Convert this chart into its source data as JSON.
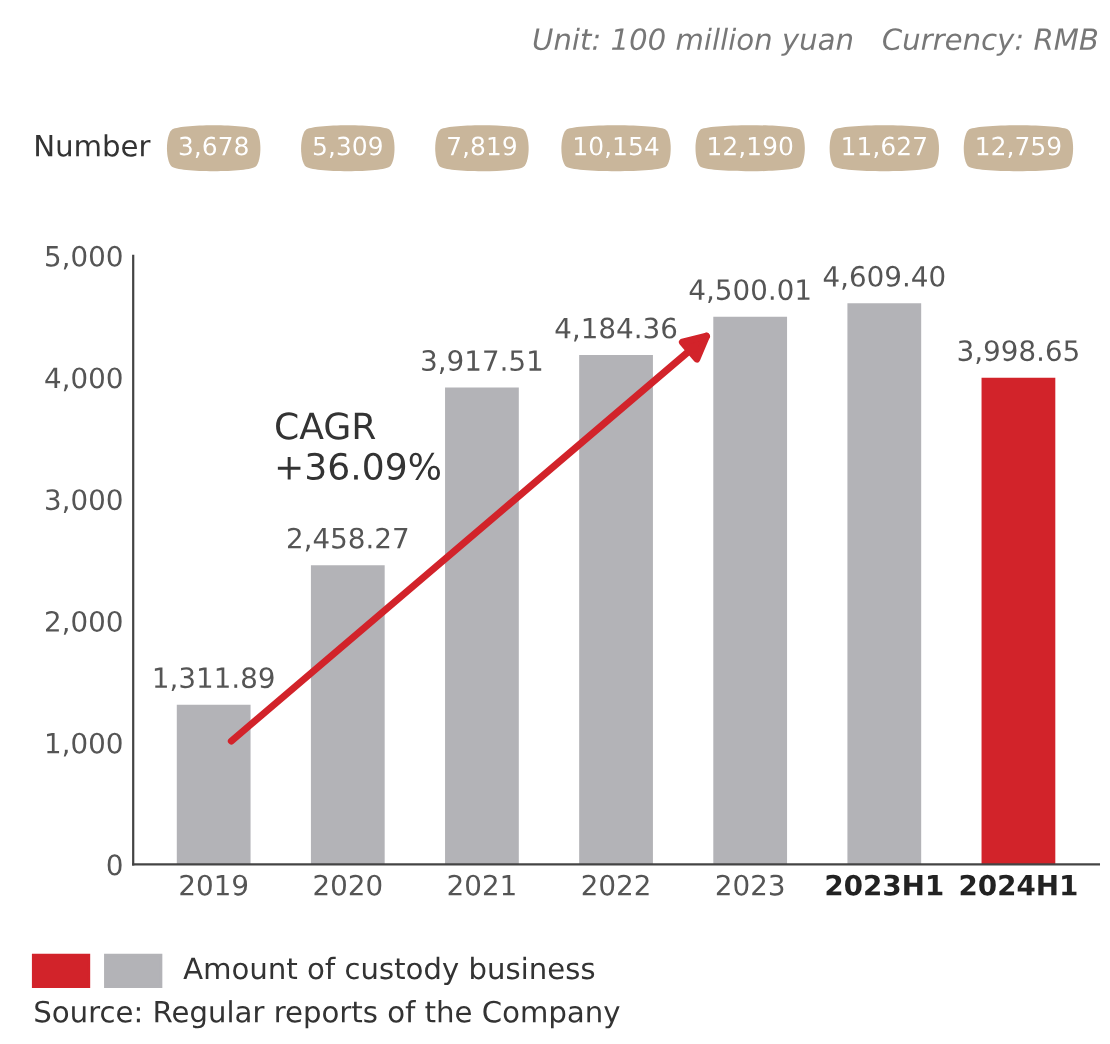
{
  "chart_data": {
    "type": "bar",
    "subtitle": "Unit: 100 million yuan   Currency: RMB",
    "categories": [
      "2019",
      "2020",
      "2021",
      "2022",
      "2023",
      "2023H1",
      "2024H1"
    ],
    "series": [
      {
        "name": "Amount of custody business",
        "colors": [
          "#b3b3b7",
          "#b3b3b7",
          "#b3b3b7",
          "#b3b3b7",
          "#b3b3b7",
          "#b3b3b7",
          "#d2232a"
        ],
        "values": [
          1311.89,
          2458.27,
          3917.51,
          4184.36,
          4500.01,
          4609.4,
          3998.65
        ],
        "value_labels": [
          "1,311.89",
          "2,458.27",
          "3,917.51",
          "4,184.36",
          "4,500.01",
          "4,609.40",
          "3,998.65"
        ]
      }
    ],
    "ylim": [
      0,
      5000
    ],
    "yticks": [
      {
        "value": 0,
        "label": "0"
      },
      {
        "value": 1000,
        "label": "1,000"
      },
      {
        "value": 2000,
        "label": "2,000"
      },
      {
        "value": 3000,
        "label": "3,000"
      },
      {
        "value": 4000,
        "label": "4,000"
      },
      {
        "value": 5000,
        "label": "5,000"
      }
    ],
    "grid": false,
    "legend": "bottom",
    "annotations": [
      "Number",
      "3,678",
      "5,309",
      "7,819",
      "10,154",
      "12,190",
      "11,627",
      "12,759",
      "CAGR\n+36.09%",
      "Source: Regular reports of the Company"
    ]
  }
}
